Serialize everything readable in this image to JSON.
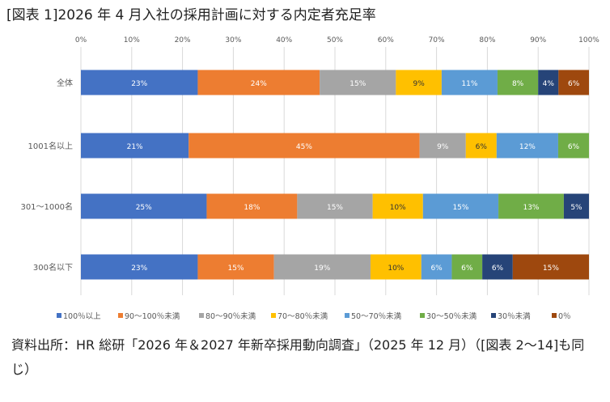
{
  "title": "[図表 1]2026 年 4 月入社の採用計画に対する内定者充足率",
  "source": "資料出所：HR 総研「2026 年＆2027 年新卒採用動向調査」（2025 年 12 月）（[図表 2～14]も同じ）",
  "chart_data": {
    "type": "bar",
    "orientation": "horizontal-stacked-100",
    "xlim": [
      0,
      100
    ],
    "xticks": [
      "0%",
      "10%",
      "20%",
      "30%",
      "40%",
      "50%",
      "60%",
      "70%",
      "80%",
      "90%",
      "100%"
    ],
    "grid": true,
    "legend_position": "bottom",
    "categories": [
      "全体",
      "1001名以上",
      "301～1000名",
      "300名以下"
    ],
    "series": [
      {
        "name": "100％以上",
        "color": "#4472C4",
        "values": [
          23,
          21,
          25,
          23
        ]
      },
      {
        "name": "90～100％未満",
        "color": "#ED7D31",
        "values": [
          24,
          45,
          18,
          15
        ]
      },
      {
        "name": "80～90％未満",
        "color": "#A5A5A5",
        "values": [
          15,
          9,
          15,
          19
        ]
      },
      {
        "name": "70～80％未満",
        "color": "#FFC000",
        "values": [
          9,
          6,
          10,
          10
        ]
      },
      {
        "name": "50～70％未満",
        "color": "#5B9BD5",
        "values": [
          11,
          12,
          15,
          6
        ]
      },
      {
        "name": "30～50％未満",
        "color": "#70AD47",
        "values": [
          8,
          6,
          13,
          6
        ]
      },
      {
        "name": "30％未満",
        "color": "#264478",
        "values": [
          4,
          0,
          5,
          6
        ]
      },
      {
        "name": "0％",
        "color": "#9E480E",
        "values": [
          6,
          0,
          0,
          15
        ]
      }
    ]
  }
}
